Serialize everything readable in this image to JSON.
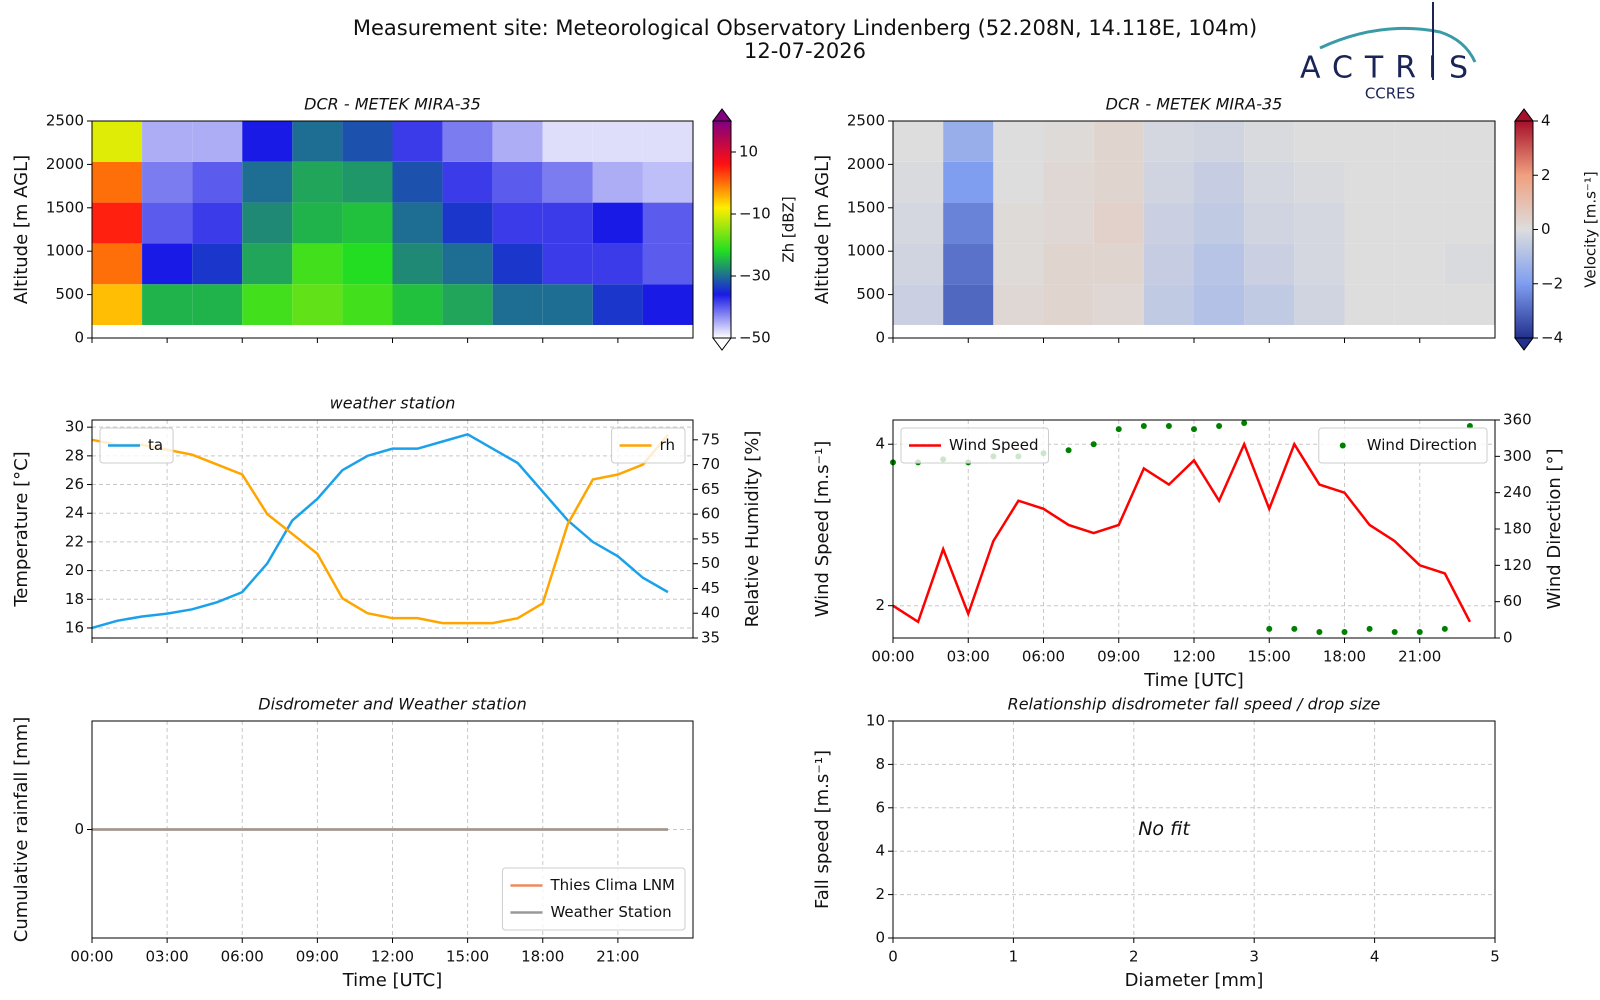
{
  "header": {
    "title": "Measurement site: Meteorological Observatory Lindenberg (52.208N, 14.118E, 104m)",
    "date": "12-07-2026",
    "logo_text": "ACTRIS",
    "logo_sub": "CCRES"
  },
  "chart_data": [
    {
      "type": "heatmap",
      "title": "DCR - METEK MIRA-35",
      "ylabel": "Altitude [m AGL]",
      "xbins": [
        0,
        2,
        4,
        6,
        8,
        10,
        12,
        14,
        16,
        18,
        20,
        22,
        24
      ],
      "ybins": [
        150,
        620,
        1090,
        1560,
        2030,
        2500
      ],
      "values": [
        [
          -5,
          -25,
          -25,
          -20,
          -18,
          -20,
          -24,
          -26,
          -30,
          -30,
          -34,
          -36
        ],
        [
          0,
          -36,
          -34,
          -26,
          -20,
          -22,
          -28,
          -30,
          -34,
          -38,
          -38,
          -40
        ],
        [
          5,
          -40,
          -38,
          -28,
          -25,
          -24,
          -30,
          -34,
          -38,
          -38,
          -36,
          -40
        ],
        [
          0,
          -42,
          -40,
          -30,
          -26,
          -27,
          -32,
          -38,
          -40,
          -42,
          -45,
          -46
        ],
        [
          -10,
          -45,
          -45,
          -36,
          -30,
          -32,
          -38,
          -42,
          -45,
          -48,
          -48,
          -48
        ]
      ],
      "xlim": [
        0,
        24
      ],
      "xticks": [
        0,
        3,
        6,
        9,
        12,
        15,
        18,
        21
      ],
      "xtick_labels": false,
      "ylim": [
        0,
        2500
      ],
      "yticks": [
        0,
        500,
        1000,
        1500,
        2000,
        2500
      ],
      "grid": false,
      "colorbar": {
        "label": "Zh [dBZ]",
        "lim": [
          -50,
          20
        ],
        "ticks": [
          {
            "value": -50,
            "label": "−50"
          },
          {
            "value": -30,
            "label": "−30"
          },
          {
            "value": -10,
            "label": "−10"
          },
          10
        ],
        "colors": [
          "#ffffff",
          "#1a1ae6",
          "#22dd22",
          "#ffee00",
          "#ff1010",
          "#800080"
        ]
      }
    },
    {
      "type": "heatmap",
      "title": "DCR - METEK MIRA-35",
      "ylabel": "Altitude [m AGL]",
      "xbins": [
        0,
        2,
        4,
        6,
        8,
        10,
        12,
        14,
        16,
        18,
        20,
        22,
        24
      ],
      "ybins": [
        150,
        620,
        1090,
        1560,
        2030,
        2500
      ],
      "values": [
        [
          -0.4,
          -3.0,
          0.2,
          0.3,
          0.2,
          -0.6,
          -0.9,
          -0.6,
          -0.3,
          0.0,
          0.0,
          0.0
        ],
        [
          -0.3,
          -2.8,
          0.1,
          0.3,
          0.3,
          -0.5,
          -0.8,
          -0.4,
          -0.2,
          0.0,
          0.0,
          -0.1
        ],
        [
          -0.2,
          -2.5,
          0.1,
          0.2,
          0.4,
          -0.4,
          -0.6,
          -0.3,
          -0.2,
          0.0,
          0.0,
          0.0
        ],
        [
          -0.1,
          -2.0,
          0.0,
          0.2,
          0.3,
          -0.3,
          -0.5,
          -0.2,
          -0.1,
          0.0,
          0.0,
          0.0
        ],
        [
          0.0,
          -1.5,
          0.0,
          0.1,
          0.3,
          -0.2,
          -0.3,
          -0.1,
          0.0,
          0.0,
          0.0,
          0.0
        ]
      ],
      "xlim": [
        0,
        24
      ],
      "xticks": [
        0,
        3,
        6,
        9,
        12,
        15,
        18,
        21
      ],
      "xtick_labels": false,
      "ylim": [
        0,
        2500
      ],
      "yticks": [
        0,
        500,
        1000,
        1500,
        2000,
        2500
      ],
      "grid": false,
      "colorbar": {
        "label": "Velocity [m.s⁻¹]",
        "lim": [
          -4,
          4
        ],
        "ticks": [
          {
            "value": -4,
            "label": "−4"
          },
          {
            "value": -2,
            "label": "−2"
          },
          0,
          2,
          4
        ],
        "colors": [
          "#23318f",
          "#7f9ef0",
          "#dddddd",
          "#f0a080",
          "#a5102a"
        ]
      }
    },
    {
      "type": "line",
      "title": "weather station",
      "ylabel": "Temperature [°C]",
      "y2label": "Relative Humidity [%]",
      "x": [
        0,
        1,
        2,
        3,
        4,
        5,
        6,
        7,
        8,
        9,
        10,
        11,
        12,
        13,
        14,
        15,
        16,
        17,
        18,
        19,
        20,
        21,
        22,
        23
      ],
      "series": [
        {
          "name": "ta",
          "color": "#1ba1ea",
          "mode": "line",
          "legend": "upper left",
          "values": [
            16.0,
            16.5,
            16.8,
            17.0,
            17.3,
            17.8,
            18.5,
            20.5,
            23.5,
            25.0,
            27.0,
            28.0,
            28.5,
            28.5,
            29.0,
            29.5,
            28.5,
            27.5,
            25.5,
            23.5,
            22.0,
            21.0,
            19.5,
            18.5
          ]
        },
        {
          "name": "rh",
          "color": "#ffa500",
          "mode": "line",
          "axis": "y2",
          "legend": "upper right",
          "values": [
            75,
            74,
            74,
            73,
            72,
            70,
            68,
            60,
            56,
            52,
            43,
            40,
            39,
            39,
            38,
            38,
            38,
            39,
            42,
            58,
            67,
            68,
            70,
            76
          ]
        }
      ],
      "xlim": [
        0,
        24
      ],
      "xticks": [
        0,
        3,
        6,
        9,
        12,
        15,
        18,
        21
      ],
      "xtick_labels": false,
      "ylim": [
        15.3,
        30.5
      ],
      "yticks": [
        16,
        18,
        20,
        22,
        24,
        26,
        28,
        30
      ],
      "y2lim": [
        35,
        79
      ],
      "y2ticks": [
        35,
        40,
        45,
        50,
        55,
        60,
        65,
        70,
        75
      ],
      "grid": true
    },
    {
      "type": "line",
      "title": "",
      "xlabel": "Time [UTC]",
      "ylabel": "Wind Speed [m.s⁻¹]",
      "y2label": "Wind Direction [°]",
      "x": [
        0,
        1,
        2,
        3,
        4,
        5,
        6,
        7,
        8,
        9,
        10,
        11,
        12,
        13,
        14,
        15,
        16,
        17,
        18,
        19,
        20,
        21,
        22,
        23
      ],
      "series": [
        {
          "name": "Wind Speed",
          "color": "#ff0000",
          "mode": "line",
          "legend": "upper left",
          "values": [
            2.0,
            1.8,
            2.7,
            1.9,
            2.8,
            3.3,
            3.2,
            3.0,
            2.9,
            3.0,
            3.7,
            3.5,
            3.8,
            3.3,
            4.0,
            3.2,
            4.0,
            3.5,
            3.4,
            3.0,
            2.8,
            2.5,
            2.4,
            1.8
          ]
        },
        {
          "name": "Wind Direction",
          "color": "#008000",
          "mode": "markers",
          "axis": "y2",
          "legend": "upper right",
          "values": [
            290,
            290,
            295,
            290,
            300,
            300,
            305,
            310,
            320,
            345,
            350,
            350,
            345,
            350,
            355,
            15,
            15,
            10,
            10,
            15,
            10,
            10,
            15,
            350
          ]
        }
      ],
      "xlim": [
        0,
        24
      ],
      "xticks": [
        {
          "value": 0,
          "label": "00:00"
        },
        {
          "value": 3,
          "label": "03:00"
        },
        {
          "value": 6,
          "label": "06:00"
        },
        {
          "value": 9,
          "label": "09:00"
        },
        {
          "value": 12,
          "label": "12:00"
        },
        {
          "value": 15,
          "label": "15:00"
        },
        {
          "value": 18,
          "label": "18:00"
        },
        {
          "value": 21,
          "label": "21:00"
        }
      ],
      "ylim": [
        1.6,
        4.3
      ],
      "yticks": [
        2,
        4
      ],
      "y2lim": [
        0,
        360
      ],
      "y2ticks": [
        0,
        60,
        120,
        180,
        240,
        300,
        360
      ],
      "grid": true
    },
    {
      "type": "line",
      "title": "Disdrometer and Weather station",
      "xlabel": "Time [UTC]",
      "ylabel": "Cumulative rainfall [mm]",
      "x": [
        0,
        23
      ],
      "series": [
        {
          "name": "Thies Clima LNM",
          "color": "#f08a5d",
          "mode": "line",
          "legend": "lower right",
          "values": [
            0,
            0
          ]
        },
        {
          "name": "Weather Station",
          "color": "#999999",
          "mode": "line",
          "legend": "lower right",
          "values": [
            0,
            0
          ]
        }
      ],
      "xlim": [
        0,
        24
      ],
      "xticks": [
        {
          "value": 0,
          "label": "00:00"
        },
        {
          "value": 3,
          "label": "03:00"
        },
        {
          "value": 6,
          "label": "06:00"
        },
        {
          "value": 9,
          "label": "09:00"
        },
        {
          "value": 12,
          "label": "12:00"
        },
        {
          "value": 15,
          "label": "15:00"
        },
        {
          "value": 18,
          "label": "18:00"
        },
        {
          "value": 21,
          "label": "21:00"
        }
      ],
      "ylim": [
        -1,
        1
      ],
      "yticks": [
        0
      ],
      "grid": true
    },
    {
      "type": "scatter",
      "title": "Relationship disdrometer fall speed / drop size",
      "xlabel": "Diameter [mm]",
      "ylabel": "Fall speed [m.s⁻¹]",
      "annotation": "No fit",
      "xlim": [
        0,
        5
      ],
      "xticks": [
        0,
        1,
        2,
        3,
        4,
        5
      ],
      "ylim": [
        0,
        10
      ],
      "yticks": [
        0,
        2,
        4,
        6,
        8,
        10
      ],
      "grid": true
    }
  ]
}
